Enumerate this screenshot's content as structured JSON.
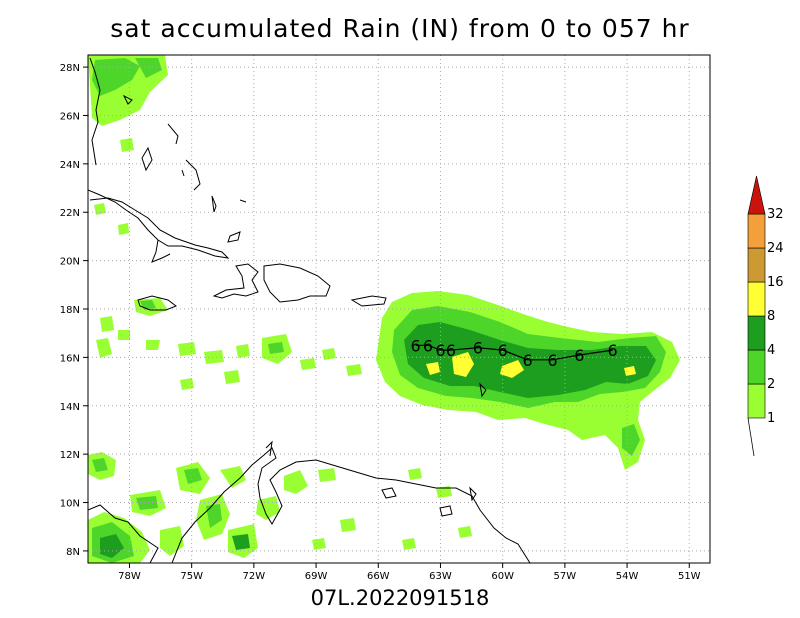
{
  "title": "sat accumulated Rain (IN) from 0 to 057 hr",
  "footer": "07L.2022091518",
  "map": {
    "lon_range": [
      -80,
      -50
    ],
    "lat_range": [
      7.5,
      28.5
    ],
    "x_ticks": [
      {
        "lon": -78,
        "label": "78W"
      },
      {
        "lon": -75,
        "label": "75W"
      },
      {
        "lon": -72,
        "label": "72W"
      },
      {
        "lon": -69,
        "label": "69W"
      },
      {
        "lon": -66,
        "label": "66W"
      },
      {
        "lon": -63,
        "label": "63W"
      },
      {
        "lon": -60,
        "label": "60W"
      },
      {
        "lon": -57,
        "label": "57W"
      },
      {
        "lon": -54,
        "label": "54W"
      },
      {
        "lon": -51,
        "label": "51W"
      }
    ],
    "y_ticks": [
      {
        "lat": 8,
        "label": "8N"
      },
      {
        "lat": 10,
        "label": "10N"
      },
      {
        "lat": 12,
        "label": "12N"
      },
      {
        "lat": 14,
        "label": "14N"
      },
      {
        "lat": 16,
        "label": "16N"
      },
      {
        "lat": 18,
        "label": "18N"
      },
      {
        "lat": 20,
        "label": "20N"
      },
      {
        "lat": 22,
        "label": "22N"
      },
      {
        "lat": 24,
        "label": "24N"
      },
      {
        "lat": 26,
        "label": "26N"
      },
      {
        "lat": 28,
        "label": "28N"
      }
    ],
    "grid": "dotted",
    "storm_track": [
      {
        "lon": -54.7,
        "lat": 16.3
      },
      {
        "lon": -56.3,
        "lat": 16.1
      },
      {
        "lon": -57.6,
        "lat": 15.9
      },
      {
        "lon": -58.8,
        "lat": 15.9
      },
      {
        "lon": -60.0,
        "lat": 16.3
      },
      {
        "lon": -61.2,
        "lat": 16.4
      },
      {
        "lon": -62.5,
        "lat": 16.3
      },
      {
        "lon": -63.0,
        "lat": 16.3
      },
      {
        "lon": -63.6,
        "lat": 16.5
      },
      {
        "lon": -64.2,
        "lat": 16.5
      }
    ],
    "storm_symbol": "tropical-storm-icon"
  },
  "colorbar": {
    "labels": [
      "1",
      "2",
      "4",
      "8",
      "16",
      "24",
      "32"
    ],
    "colors": [
      "#99ff33",
      "#4dd629",
      "#1e9e1e",
      "#ffff33",
      "#cc9933",
      "#f4a03a",
      "#c8140a"
    ]
  }
}
